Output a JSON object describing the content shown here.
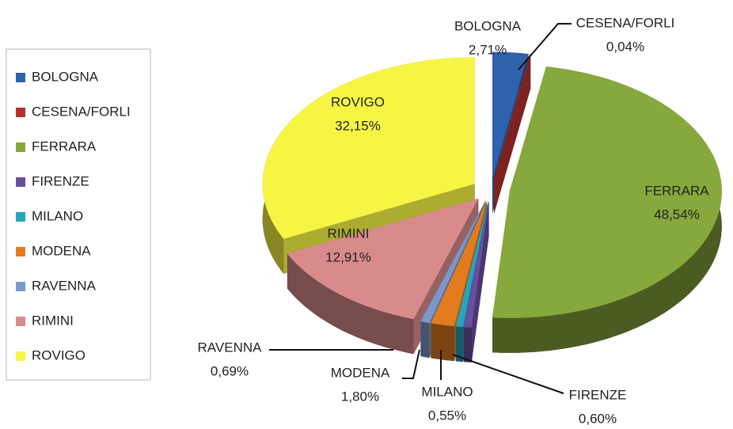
{
  "chart_data": {
    "type": "pie",
    "categories": [
      "BOLOGNA",
      "CESENA/FORLI",
      "FERRARA",
      "FIRENZE",
      "MILANO",
      "MODENA",
      "RAVENNA",
      "RIMINI",
      "ROVIGO"
    ],
    "values": [
      2.71,
      0.04,
      48.54,
      0.6,
      0.55,
      1.8,
      0.69,
      12.91,
      32.15
    ],
    "value_labels": [
      "2,71%",
      "0,04%",
      "48,54%",
      "0,60%",
      "0,55%",
      "1,80%",
      "0,69%",
      "12,91%",
      "32,15%"
    ],
    "colors": [
      "#2f62ac",
      "#b3302c",
      "#86a83c",
      "#6a4e9e",
      "#2aa3bd",
      "#e27c1e",
      "#7b97cb",
      "#d98b8b",
      "#f6f544"
    ],
    "legend": "left"
  }
}
